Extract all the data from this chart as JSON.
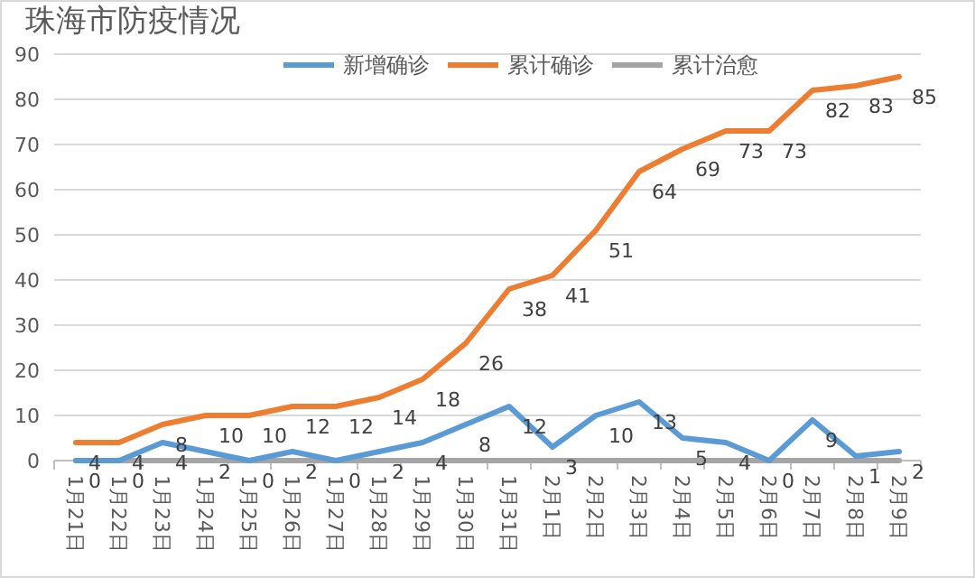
{
  "chart_data": {
    "type": "line",
    "title": "珠海市防疫情况",
    "categories": [
      "1月21日",
      "1月22日",
      "1月23日",
      "1月24日",
      "1月25日",
      "1月26日",
      "1月27日",
      "1月28日",
      "1月29日",
      "1月30日",
      "1月31日",
      "2月1日",
      "2月2日",
      "2月3日",
      "2月4日",
      "2月5日",
      "2月6日",
      "2月7日",
      "2月8日",
      "2月9日"
    ],
    "series": [
      {
        "name": "新增确诊",
        "color": "#5b9bd5",
        "values": [
          0,
          0,
          4,
          2,
          0,
          2,
          0,
          2,
          4,
          8,
          12,
          3,
          10,
          13,
          5,
          4,
          0,
          9,
          1,
          2
        ],
        "value_labels": [
          "0",
          "0",
          "4",
          "2",
          "0",
          "2",
          "0",
          "2",
          "4",
          "8",
          "12",
          "3",
          "10",
          "13",
          "5",
          "4",
          "0",
          "9",
          "1",
          "2"
        ]
      },
      {
        "name": "累计确诊",
        "color": "#ed7d31",
        "values": [
          4,
          4,
          8,
          10,
          10,
          12,
          12,
          14,
          18,
          26,
          38,
          41,
          51,
          64,
          69,
          73,
          73,
          82,
          83,
          85
        ],
        "value_labels": [
          "4",
          "4",
          "8",
          "10",
          "10",
          "12",
          "12",
          "14",
          "18",
          "26",
          "38",
          "41",
          "51",
          "64",
          "69",
          "73",
          "73",
          "82",
          "83",
          "85"
        ]
      },
      {
        "name": "累计治愈",
        "color": "#a5a5a5",
        "values": [
          0,
          0,
          0,
          0,
          0,
          0,
          0,
          0,
          0,
          0,
          0,
          0,
          0,
          0,
          0,
          0,
          0,
          0,
          0,
          0
        ]
      }
    ],
    "ylim": [
      0,
      90
    ],
    "yticks": [
      0,
      10,
      20,
      30,
      40,
      50,
      60,
      70,
      80,
      90
    ],
    "grid": "y",
    "legend": "top right",
    "marker": "none",
    "line_style": "solid"
  }
}
